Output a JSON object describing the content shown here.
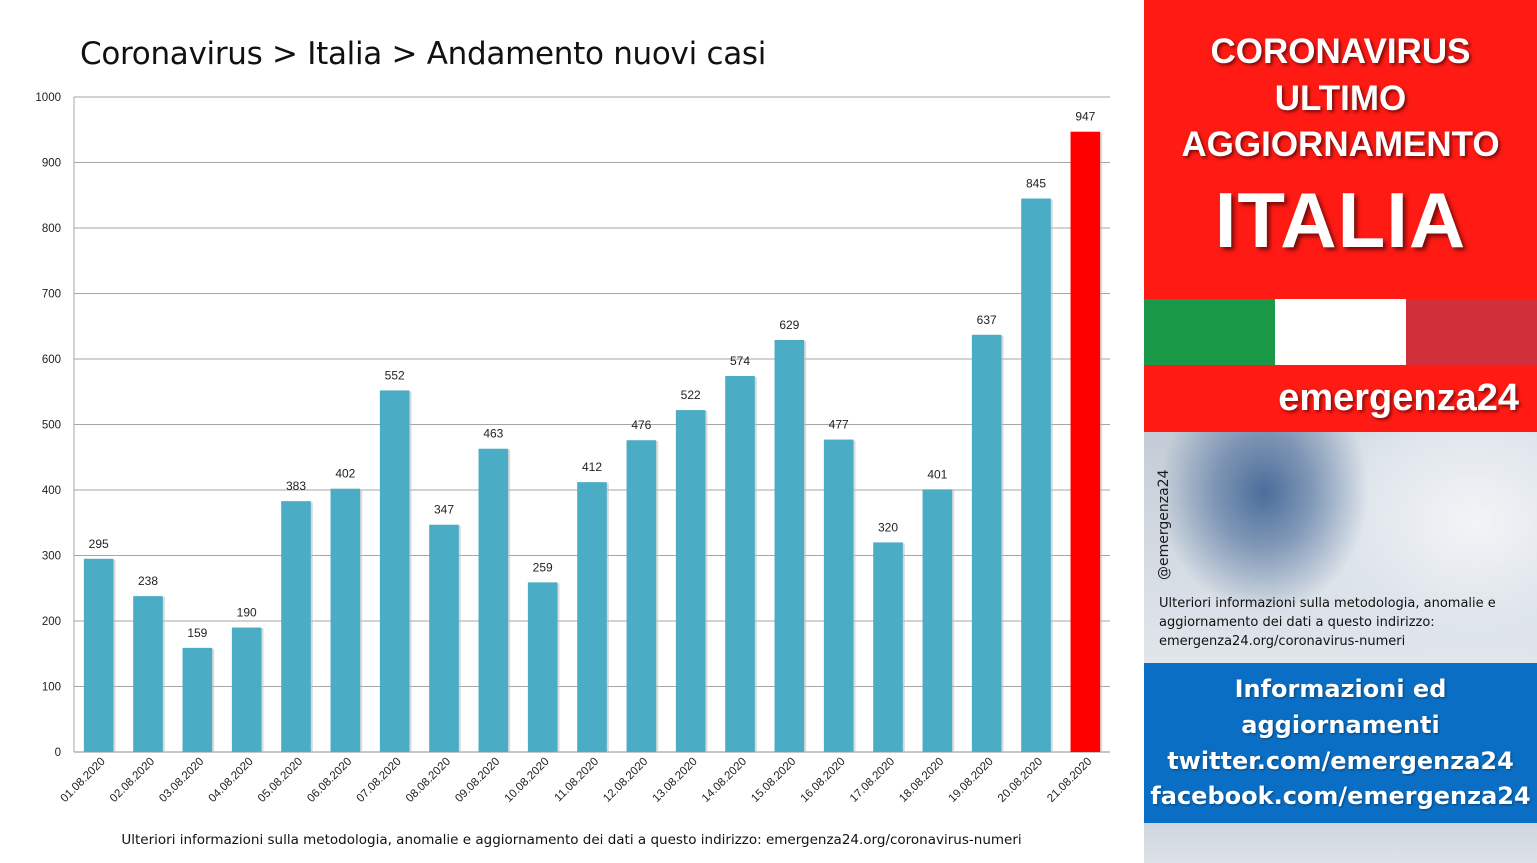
{
  "chart_data": {
    "type": "bar",
    "title": "Coronavirus > Italia > Andamento nuovi casi",
    "categories": [
      "01.08.2020",
      "02.08.2020",
      "03.08.2020",
      "04.08.2020",
      "05.08.2020",
      "06.08.2020",
      "07.08.2020",
      "08.08.2020",
      "09.08.2020",
      "10.08.2020",
      "11.08.2020",
      "12.08.2020",
      "13.08.2020",
      "14.08.2020",
      "15.08.2020",
      "16.08.2020",
      "17.08.2020",
      "18.08.2020",
      "19.08.2020",
      "20.08.2020",
      "21.08.2020"
    ],
    "values": [
      295,
      238,
      159,
      190,
      383,
      402,
      552,
      347,
      463,
      259,
      412,
      476,
      522,
      574,
      629,
      477,
      320,
      401,
      637,
      845,
      947
    ],
    "ylim": [
      0,
      1000
    ],
    "yticks": [
      0,
      100,
      200,
      300,
      400,
      500,
      600,
      700,
      800,
      900,
      1000
    ],
    "grid": true,
    "data_labels": true,
    "bar_color": "#4bacc6",
    "highlight_color": "#ff0000",
    "highlight_index": 20,
    "footnote": "Ulteriori informazioni sulla metodologia, anomalie e aggiornamento dei dati a questo indirizzo: emergenza24.org/coronavirus-numeri"
  },
  "side_panel": {
    "header_lines": [
      "CORONAVIRUS",
      "ULTIMO",
      "AGGIORNAMENTO"
    ],
    "country": "ITALIA",
    "flag_colors": [
      "#1a9a48",
      "#ffffff",
      "#d1303b"
    ],
    "header_color": "#ff1a14",
    "brand": "emergenza24",
    "handle": "@emergenza24",
    "note": "Ulteriori informazioni sulla metodologia, anomalie e aggiornamento dei dati a questo indirizzo: emergenza24.org/coronavirus-numeri",
    "social_lines": [
      "Informazioni ed",
      "aggiornamenti",
      "twitter.com/emergenza24",
      "facebook.com/emergenza24"
    ],
    "social_color": "#0a6fc4"
  }
}
